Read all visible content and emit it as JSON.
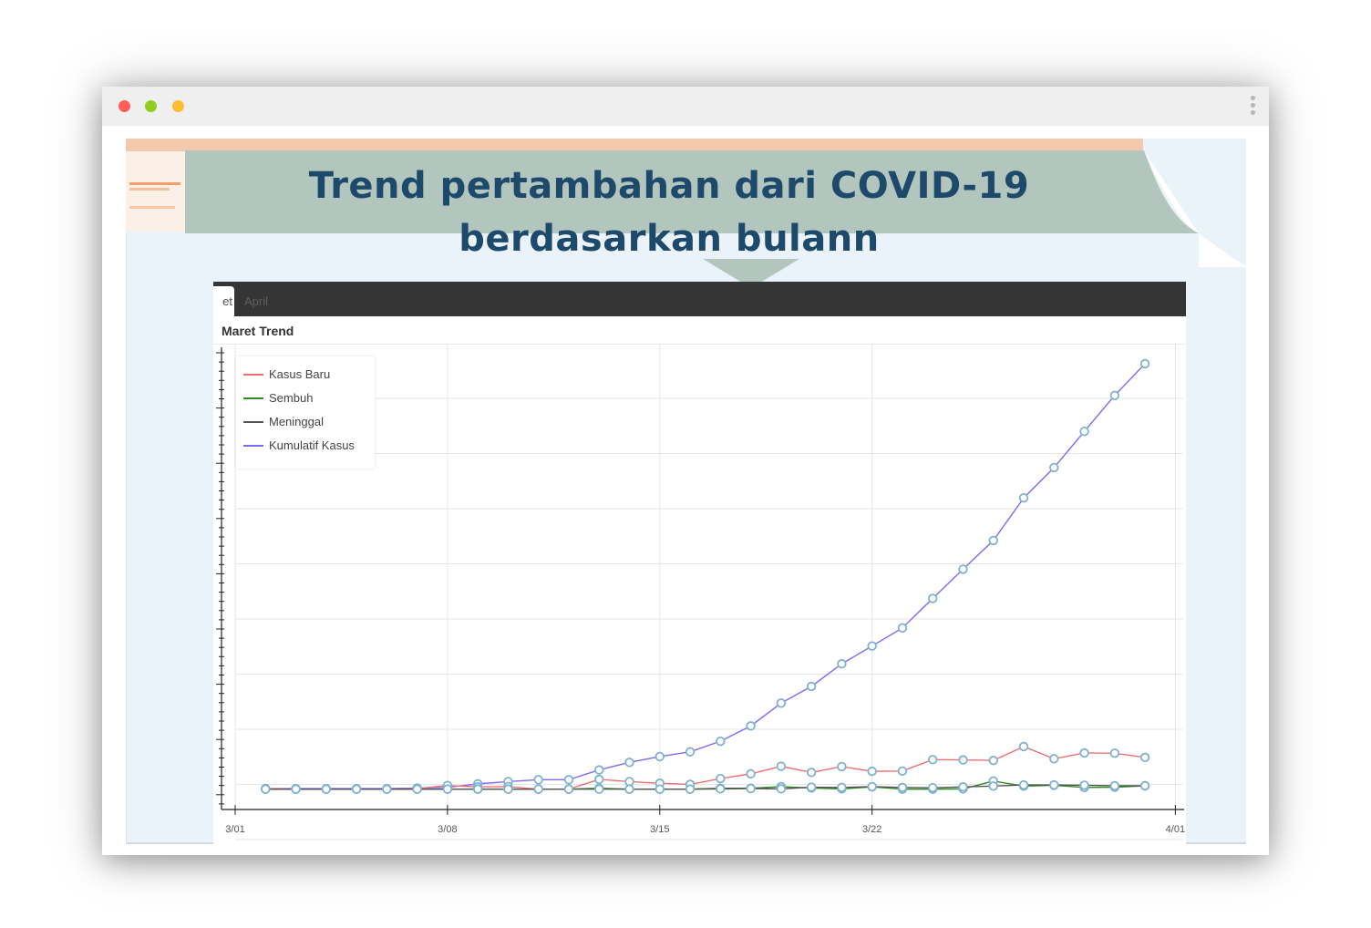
{
  "window": {
    "controls": {
      "close_color": "#ff5f57",
      "minimize_color": "#8fce1e",
      "maximize_color": "#ffbd2e"
    },
    "menu_icon": "kebab-menu-icon"
  },
  "banner": {
    "title": "Trend pertambahan dari COVID-19 berdasarkan bulann",
    "background_color": "#b3c6bd",
    "text_color": "#1d4a6b"
  },
  "tabs": [
    {
      "label": "Maret",
      "visible_text": "et",
      "active": true
    },
    {
      "label": "April",
      "visible_text": "April",
      "active": false
    }
  ],
  "panel": {
    "heading": "Maret Trend"
  },
  "chart_data": {
    "type": "line",
    "title": "Maret Trend",
    "xlabel": "",
    "ylabel": "",
    "x_tick_labels": [
      "3/01",
      "3/08",
      "3/15",
      "3/22",
      "4/01"
    ],
    "x": [
      "3/02",
      "3/03",
      "3/04",
      "3/05",
      "3/06",
      "3/07",
      "3/08",
      "3/09",
      "3/10",
      "3/11",
      "3/12",
      "3/13",
      "3/14",
      "3/15",
      "3/16",
      "3/17",
      "3/18",
      "3/19",
      "3/20",
      "3/21",
      "3/22",
      "3/23",
      "3/24",
      "3/25",
      "3/26",
      "3/27",
      "3/28",
      "3/29",
      "3/30",
      "3/31"
    ],
    "ylim": [
      -60,
      1600
    ],
    "grid": true,
    "legend_position": "top-left",
    "markers": "hollow-circle",
    "series": [
      {
        "name": "Kasus Baru",
        "color": "#f07070",
        "values": [
          2,
          0,
          0,
          0,
          0,
          2,
          13,
          8,
          9,
          0,
          0,
          35,
          27,
          21,
          17,
          38,
          55,
          82,
          60,
          81,
          64,
          65,
          106,
          105,
          103,
          153,
          109,
          130,
          129,
          114
        ]
      },
      {
        "name": "Sembuh",
        "color": "#2e8b22",
        "values": [
          0,
          0,
          0,
          0,
          0,
          0,
          0,
          0,
          0,
          0,
          0,
          3,
          0,
          0,
          0,
          3,
          3,
          9,
          4,
          1,
          8,
          0,
          0,
          1,
          29,
          11,
          14,
          6,
          7,
          12
        ]
      },
      {
        "name": "Meninggal",
        "color": "#555555",
        "values": [
          0,
          0,
          0,
          0,
          0,
          0,
          0,
          0,
          0,
          0,
          0,
          0,
          0,
          0,
          0,
          1,
          2,
          1,
          7,
          6,
          9,
          6,
          5,
          8,
          11,
          15,
          15,
          14,
          12,
          12
        ]
      },
      {
        "name": "Kumulatif Kasus",
        "color": "#7b6cf6",
        "values": [
          2,
          2,
          2,
          2,
          2,
          4,
          6,
          19,
          27,
          34,
          34,
          69,
          96,
          117,
          134,
          172,
          227,
          309,
          369,
          450,
          514,
          579,
          685,
          790,
          893,
          1046,
          1155,
          1285,
          1414,
          1528
        ]
      }
    ]
  }
}
